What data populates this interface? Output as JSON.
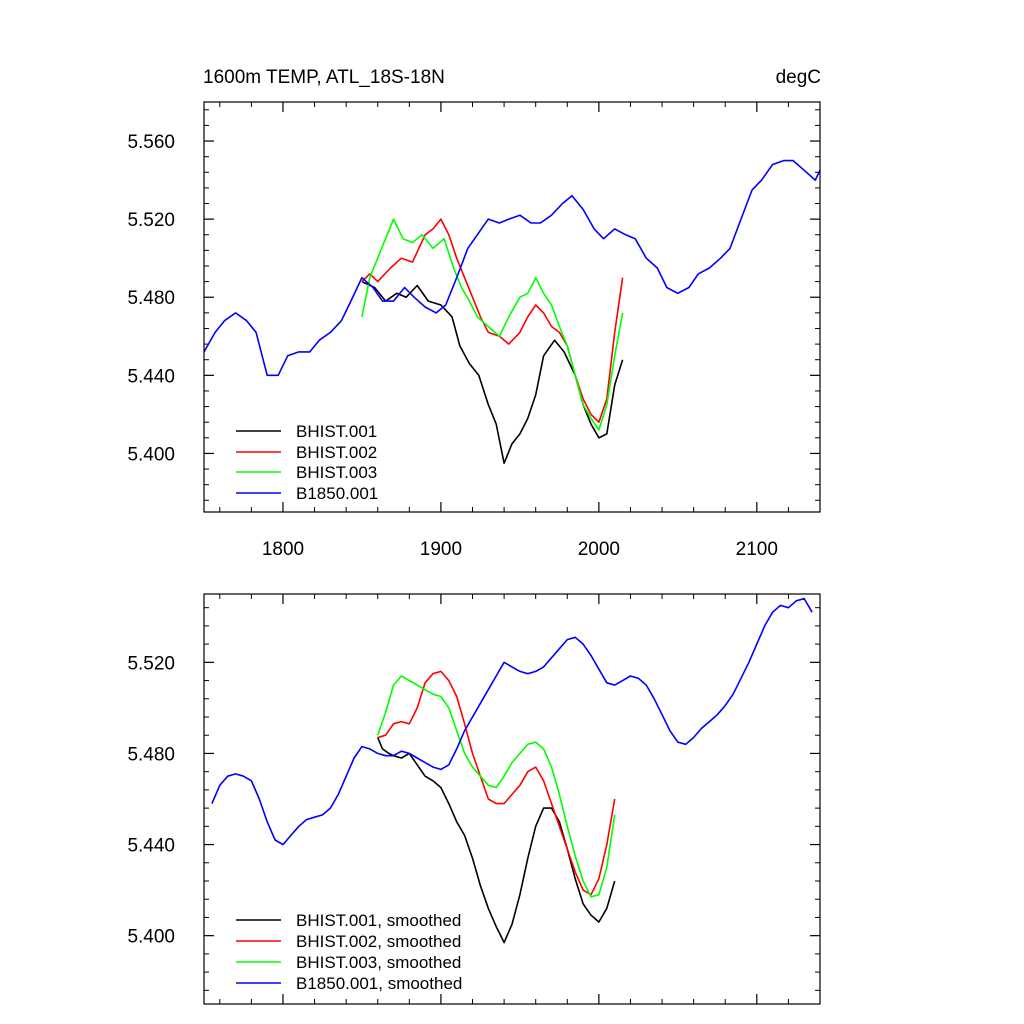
{
  "chart_data": [
    {
      "type": "line",
      "title_left": "1600m TEMP, ATL_18S-18N",
      "title_right": "degC",
      "xlim": [
        1750,
        2140
      ],
      "ylim": [
        5.37,
        5.58
      ],
      "x_ticks": [
        1800,
        1900,
        2000,
        2100
      ],
      "x_tick_labels": [
        "1800",
        "1900",
        "2000",
        "2100"
      ],
      "y_ticks": [
        5.4,
        5.44,
        5.48,
        5.52,
        5.56
      ],
      "y_tick_labels": [
        "5.400",
        "5.440",
        "5.480",
        "5.520",
        "5.560"
      ],
      "grid": false,
      "legend_position": "bottom-left",
      "series": [
        {
          "name": "BHIST.001",
          "color": "#000000",
          "x": [
            1850,
            1858,
            1865,
            1872,
            1878,
            1885,
            1892,
            1900,
            1907,
            1912,
            1918,
            1924,
            1930,
            1935,
            1940,
            1945,
            1950,
            1955,
            1960,
            1965,
            1972,
            1978,
            1985,
            1990,
            1995,
            2000,
            2005,
            2010,
            2015
          ],
          "y": [
            5.488,
            5.485,
            5.478,
            5.482,
            5.48,
            5.486,
            5.478,
            5.476,
            5.47,
            5.455,
            5.446,
            5.44,
            5.425,
            5.415,
            5.395,
            5.405,
            5.41,
            5.418,
            5.43,
            5.45,
            5.458,
            5.452,
            5.44,
            5.425,
            5.415,
            5.408,
            5.41,
            5.435,
            5.448
          ]
        },
        {
          "name": "BHIST.002",
          "color": "#ff0000",
          "x": [
            1850,
            1855,
            1860,
            1868,
            1875,
            1882,
            1890,
            1895,
            1900,
            1905,
            1910,
            1915,
            1920,
            1925,
            1930,
            1937,
            1943,
            1950,
            1955,
            1960,
            1965,
            1970,
            1975,
            1980,
            1985,
            1990,
            1995,
            2000,
            2005,
            2010,
            2015
          ],
          "y": [
            5.488,
            5.492,
            5.488,
            5.495,
            5.5,
            5.498,
            5.512,
            5.515,
            5.52,
            5.512,
            5.5,
            5.49,
            5.48,
            5.47,
            5.462,
            5.46,
            5.456,
            5.462,
            5.47,
            5.476,
            5.472,
            5.465,
            5.462,
            5.455,
            5.44,
            5.428,
            5.42,
            5.416,
            5.428,
            5.462,
            5.49
          ]
        },
        {
          "name": "BHIST.003",
          "color": "#00ff00",
          "x": [
            1850,
            1855,
            1860,
            1865,
            1870,
            1876,
            1882,
            1888,
            1895,
            1902,
            1908,
            1913,
            1918,
            1923,
            1930,
            1937,
            1943,
            1950,
            1955,
            1960,
            1965,
            1970,
            1975,
            1980,
            1985,
            1990,
            1995,
            2000,
            2005,
            2010,
            2015
          ],
          "y": [
            5.47,
            5.49,
            5.5,
            5.51,
            5.52,
            5.51,
            5.508,
            5.512,
            5.505,
            5.51,
            5.495,
            5.485,
            5.478,
            5.47,
            5.465,
            5.46,
            5.47,
            5.48,
            5.482,
            5.49,
            5.482,
            5.476,
            5.465,
            5.455,
            5.44,
            5.425,
            5.418,
            5.412,
            5.425,
            5.45,
            5.472
          ]
        },
        {
          "name": "B1850.001",
          "color": "#0000ff",
          "x": [
            1750,
            1757,
            1763,
            1770,
            1777,
            1783,
            1790,
            1797,
            1803,
            1810,
            1817,
            1823,
            1830,
            1837,
            1843,
            1850,
            1857,
            1863,
            1870,
            1877,
            1883,
            1890,
            1897,
            1903,
            1910,
            1917,
            1923,
            1930,
            1937,
            1943,
            1950,
            1957,
            1963,
            1970,
            1977,
            1983,
            1990,
            1997,
            2003,
            2010,
            2017,
            2023,
            2030,
            2037,
            2043,
            2050,
            2057,
            2063,
            2070,
            2077,
            2083,
            2090,
            2097,
            2103,
            2110,
            2117,
            2123,
            2130,
            2137,
            2140
          ],
          "y": [
            5.452,
            5.462,
            5.468,
            5.472,
            5.468,
            5.462,
            5.44,
            5.44,
            5.45,
            5.452,
            5.452,
            5.458,
            5.462,
            5.468,
            5.478,
            5.49,
            5.485,
            5.478,
            5.478,
            5.485,
            5.48,
            5.475,
            5.472,
            5.476,
            5.49,
            5.505,
            5.512,
            5.52,
            5.518,
            5.52,
            5.522,
            5.518,
            5.518,
            5.522,
            5.528,
            5.532,
            5.525,
            5.515,
            5.51,
            5.515,
            5.512,
            5.51,
            5.5,
            5.495,
            5.485,
            5.482,
            5.485,
            5.492,
            5.495,
            5.5,
            5.505,
            5.52,
            5.535,
            5.54,
            5.548,
            5.55,
            5.55,
            5.545,
            5.54,
            5.545
          ]
        }
      ]
    },
    {
      "type": "line",
      "xlim": [
        1750,
        2140
      ],
      "ylim": [
        5.37,
        5.55
      ],
      "x_ticks": [
        1800,
        1900,
        2000,
        2100
      ],
      "x_tick_labels": [],
      "y_ticks": [
        5.4,
        5.44,
        5.48,
        5.52
      ],
      "y_tick_labels": [
        "5.400",
        "5.440",
        "5.480",
        "5.520"
      ],
      "grid": false,
      "legend_position": "bottom-left",
      "series": [
        {
          "name": "BHIST.001, smoothed",
          "color": "#000000",
          "x": [
            1860,
            1863,
            1867,
            1870,
            1875,
            1880,
            1885,
            1890,
            1895,
            1900,
            1905,
            1910,
            1915,
            1920,
            1925,
            1930,
            1935,
            1940,
            1945,
            1950,
            1955,
            1960,
            1965,
            1970,
            1975,
            1980,
            1985,
            1990,
            1995,
            2000,
            2005,
            2010
          ],
          "y": [
            5.487,
            5.482,
            5.48,
            5.479,
            5.478,
            5.48,
            5.475,
            5.47,
            5.468,
            5.465,
            5.458,
            5.45,
            5.444,
            5.434,
            5.422,
            5.412,
            5.404,
            5.397,
            5.405,
            5.418,
            5.434,
            5.448,
            5.456,
            5.456,
            5.45,
            5.438,
            5.425,
            5.414,
            5.409,
            5.406,
            5.412,
            5.424
          ]
        },
        {
          "name": "BHIST.002, smoothed",
          "color": "#ff0000",
          "x": [
            1860,
            1865,
            1870,
            1875,
            1880,
            1885,
            1890,
            1895,
            1900,
            1905,
            1910,
            1915,
            1920,
            1925,
            1930,
            1935,
            1940,
            1945,
            1950,
            1955,
            1960,
            1965,
            1970,
            1975,
            1980,
            1985,
            1990,
            1995,
            2000,
            2005,
            2010
          ],
          "y": [
            5.487,
            5.488,
            5.493,
            5.494,
            5.493,
            5.5,
            5.511,
            5.515,
            5.516,
            5.512,
            5.505,
            5.493,
            5.48,
            5.47,
            5.46,
            5.458,
            5.458,
            5.462,
            5.466,
            5.472,
            5.474,
            5.468,
            5.458,
            5.448,
            5.438,
            5.428,
            5.42,
            5.418,
            5.425,
            5.44,
            5.46
          ]
        },
        {
          "name": "BHIST.003, smoothed",
          "color": "#00ff00",
          "x": [
            1860,
            1865,
            1870,
            1875,
            1880,
            1885,
            1890,
            1895,
            1900,
            1905,
            1910,
            1915,
            1920,
            1925,
            1930,
            1935,
            1940,
            1945,
            1950,
            1955,
            1960,
            1965,
            1970,
            1975,
            1980,
            1985,
            1990,
            1995,
            2000,
            2005,
            2010
          ],
          "y": [
            5.488,
            5.498,
            5.51,
            5.514,
            5.512,
            5.51,
            5.508,
            5.506,
            5.505,
            5.5,
            5.49,
            5.48,
            5.474,
            5.47,
            5.466,
            5.465,
            5.47,
            5.476,
            5.48,
            5.484,
            5.485,
            5.482,
            5.474,
            5.462,
            5.448,
            5.435,
            5.424,
            5.417,
            5.418,
            5.43,
            5.453
          ]
        },
        {
          "name": "B1850.001, smoothed",
          "color": "#0000ff",
          "x": [
            1755,
            1760,
            1765,
            1770,
            1775,
            1780,
            1785,
            1790,
            1795,
            1800,
            1805,
            1810,
            1815,
            1820,
            1825,
            1830,
            1835,
            1840,
            1845,
            1850,
            1855,
            1860,
            1865,
            1870,
            1875,
            1880,
            1885,
            1890,
            1895,
            1900,
            1905,
            1910,
            1915,
            1920,
            1925,
            1930,
            1935,
            1940,
            1945,
            1950,
            1955,
            1960,
            1965,
            1970,
            1975,
            1980,
            1985,
            1990,
            1995,
            2000,
            2005,
            2010,
            2015,
            2020,
            2025,
            2030,
            2035,
            2040,
            2045,
            2050,
            2055,
            2060,
            2065,
            2070,
            2075,
            2080,
            2085,
            2090,
            2095,
            2100,
            2105,
            2110,
            2115,
            2120,
            2125,
            2130,
            2135
          ],
          "y": [
            5.458,
            5.466,
            5.47,
            5.471,
            5.47,
            5.468,
            5.46,
            5.45,
            5.442,
            5.44,
            5.444,
            5.448,
            5.451,
            5.452,
            5.453,
            5.456,
            5.462,
            5.47,
            5.478,
            5.483,
            5.482,
            5.48,
            5.479,
            5.479,
            5.481,
            5.48,
            5.478,
            5.476,
            5.474,
            5.473,
            5.475,
            5.482,
            5.49,
            5.496,
            5.502,
            5.508,
            5.514,
            5.52,
            5.518,
            5.516,
            5.515,
            5.516,
            5.518,
            5.522,
            5.526,
            5.53,
            5.531,
            5.528,
            5.523,
            5.517,
            5.511,
            5.51,
            5.512,
            5.514,
            5.513,
            5.51,
            5.504,
            5.497,
            5.49,
            5.485,
            5.484,
            5.487,
            5.491,
            5.494,
            5.497,
            5.501,
            5.506,
            5.513,
            5.52,
            5.528,
            5.536,
            5.542,
            5.545,
            5.544,
            5.547,
            5.548,
            5.542
          ]
        }
      ]
    }
  ]
}
